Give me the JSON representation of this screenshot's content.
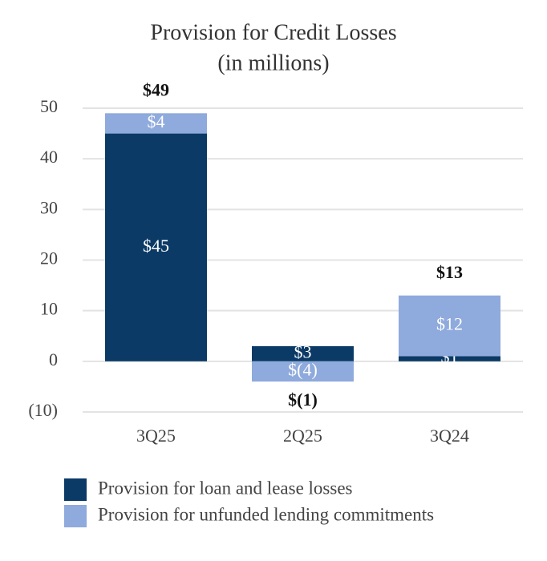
{
  "chart_data": {
    "type": "stacked_bar",
    "title": [
      "Provision for Credit Losses",
      "(in millions)"
    ],
    "categories": [
      "3Q25",
      "2Q25",
      "3Q24"
    ],
    "series": [
      {
        "name": "Provision for loan and lease losses",
        "color": "#0b3a66",
        "values": [
          45,
          3,
          1
        ],
        "value_labels": [
          "$45",
          "$3",
          "$1"
        ]
      },
      {
        "name": "Provision for unfunded lending commitments",
        "color": "#8faadc",
        "values": [
          4,
          -4,
          12
        ],
        "value_labels": [
          "$4",
          "$(4)",
          "$12"
        ]
      }
    ],
    "totals": {
      "values": [
        49,
        -1,
        13
      ],
      "value_labels": [
        "$49",
        "$(1)",
        "$13"
      ]
    },
    "ylim": [
      -10,
      50
    ],
    "yticks": [
      50,
      40,
      30,
      20,
      10,
      0,
      {
        "value": -10,
        "label": "(10)"
      }
    ],
    "grid": true
  }
}
